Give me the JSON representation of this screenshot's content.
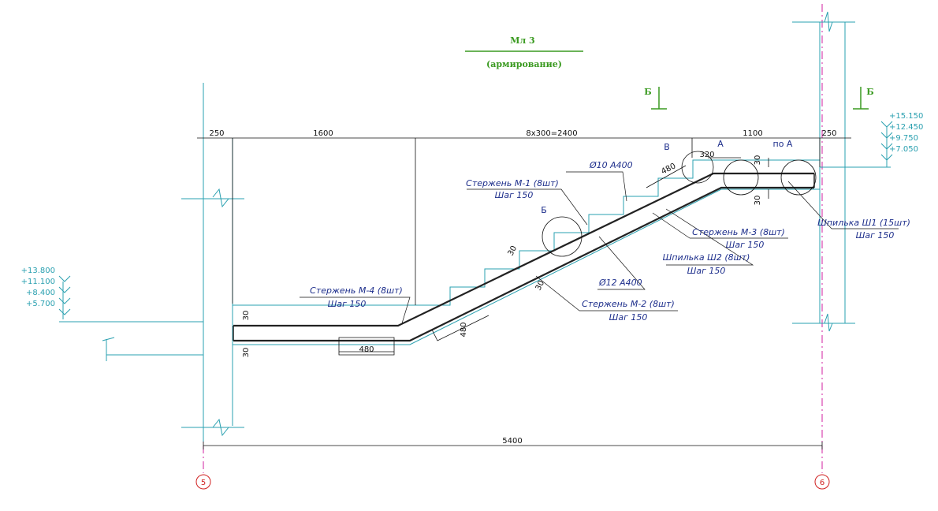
{
  "title": "Мл 3",
  "subtitle": "(армирование)",
  "section_marks": [
    "Б",
    "Б"
  ],
  "dimensions": {
    "top": [
      "250",
      "1600",
      "8x300=2400",
      "1100",
      "250"
    ],
    "overall": "5400",
    "local": [
      "30",
      "30",
      "480",
      "480",
      "30",
      "30",
      "480",
      "320",
      "30",
      "30"
    ]
  },
  "elevations": {
    "left": [
      "+13.800",
      "+11.100",
      "+8.400",
      "+5.700"
    ],
    "right": [
      "+15.150",
      "+12.450",
      "+9.750",
      "+7.050"
    ]
  },
  "axes": [
    "5",
    "6"
  ],
  "callouts": [
    "В",
    "А",
    "по А",
    "Б"
  ],
  "diameters": [
    "Ø10 А400",
    "Ø12 А400"
  ],
  "labels": [
    {
      "name": "Стержень М-1 (8шт)",
      "step": "Шаг 150"
    },
    {
      "name": "Стержень М-4 (8шт)",
      "step": "Шаг 150"
    },
    {
      "name": "Стержень М-2 (8шт)",
      "step": "Шаг 150"
    },
    {
      "name": "Стержень М-3 (8шт)",
      "step": "Шаг 150"
    },
    {
      "name": "Шпилька Ш2 (8шт)",
      "step": "Шаг 150"
    },
    {
      "name": "Шпилька Ш1 (15шт)",
      "step": "Шаг 150"
    }
  ]
}
